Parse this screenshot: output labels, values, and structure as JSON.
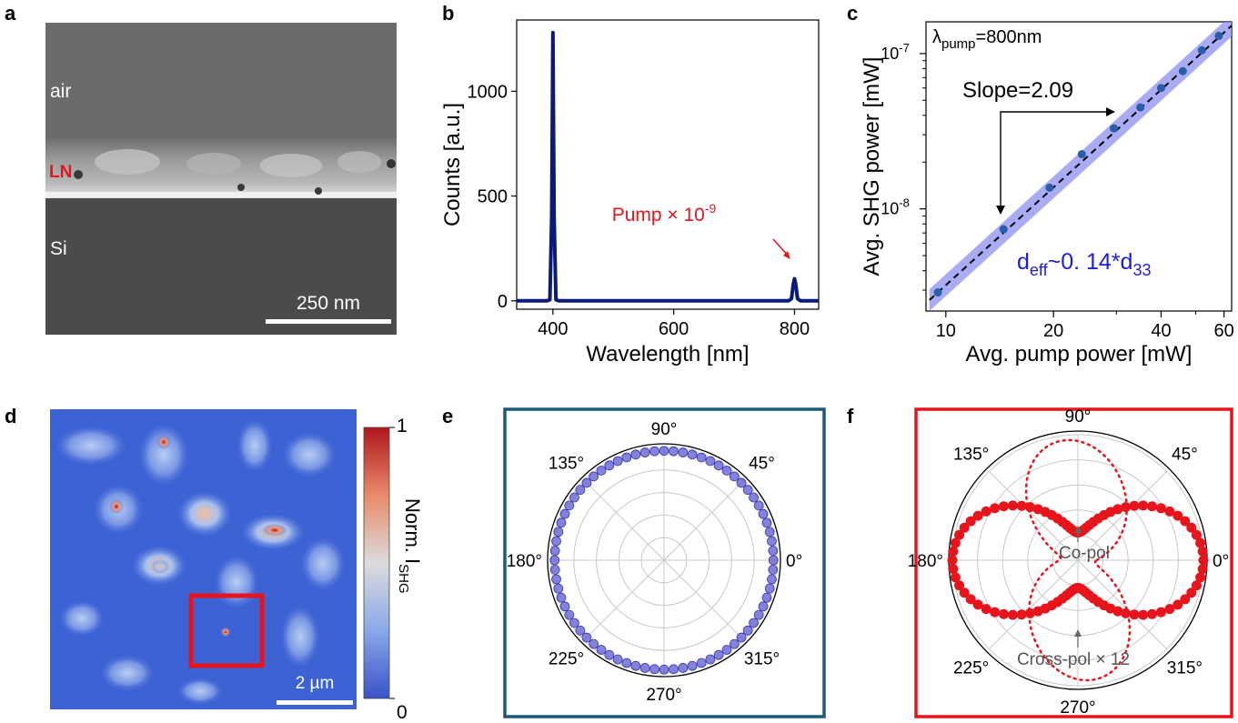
{
  "panels": {
    "a": {
      "letter": "a",
      "labels": {
        "air": "air",
        "ln": "LN",
        "si": "Si"
      },
      "scalebar": "250 nm",
      "colors": {
        "ln_label": "#e8141c"
      }
    },
    "b": {
      "letter": "b",
      "annotation_pre": "Pump × 10",
      "annotation_exp": "-9",
      "colors": {
        "trace": "#0a1a7a",
        "annotation": "#e8141c"
      }
    },
    "c": {
      "letter": "c",
      "lambda_sym": "λ",
      "lambda_sub": "pump",
      "lambda_rest": "=800nm",
      "slope": "Slope=2.09",
      "deff_pre": "d",
      "deff_sub": "eff",
      "deff_mid": "~0. 14*d",
      "deff_sub2": "33",
      "colors": {
        "points": "#2a5ea8",
        "band": "#8c8ff2",
        "fit": "#000000",
        "deff": "#1c1ce0"
      }
    },
    "d": {
      "letter": "d",
      "scalebar": "2 µm",
      "colorbar_label": "Norm. I",
      "colorbar_label_sub": "SHG",
      "colorbar_ticks": [
        "1",
        "0"
      ],
      "colors": {
        "box": "#e8141c",
        "map_low": "#3a60d0",
        "map_high": "#b0161e"
      }
    },
    "e": {
      "letter": "e",
      "angles": [
        "90°",
        "45°",
        "0°",
        "315°",
        "270°",
        "225°",
        "180°",
        "135°"
      ],
      "colors": {
        "frame": "#1e5a78",
        "points": "#5a5ad2"
      }
    },
    "f": {
      "letter": "f",
      "angles": [
        "90°",
        "45°",
        "0°",
        "315°",
        "270°",
        "225°",
        "180°",
        "135°"
      ],
      "copol": "Co-pol",
      "crosspol": "Cross-pol × 12",
      "colors": {
        "frame": "#e8141c",
        "curve": "#e8141c"
      }
    }
  },
  "chart_data": [
    {
      "panel": "b",
      "type": "line",
      "xlabel": "Wavelength [nm]",
      "ylabel": "Counts [a.u.]",
      "xlim": [
        340,
        840
      ],
      "ylim": [
        -40,
        1340
      ],
      "xticks": [
        400,
        600,
        800
      ],
      "yticks": [
        0,
        500,
        1000
      ],
      "series": [
        {
          "x": [
            340,
            390,
            395,
            398,
            400,
            402,
            405,
            410,
            450,
            500,
            550,
            600,
            650,
            700,
            750,
            790,
            795,
            798,
            800,
            802,
            805,
            810,
            840
          ],
          "y": [
            0,
            0,
            5,
            400,
            1280,
            400,
            5,
            0,
            0,
            0,
            0,
            0,
            0,
            0,
            0,
            0,
            10,
            80,
            105,
            80,
            10,
            0,
            0
          ]
        }
      ]
    },
    {
      "panel": "c",
      "type": "scatter",
      "xlabel": "Avg. pump power [mW]",
      "ylabel": "Avg. SHG power [mW]",
      "xscale": "log",
      "yscale": "log",
      "xlim": [
        8.8,
        63
      ],
      "ylim": [
        2.2e-09,
        1.6e-07
      ],
      "xticks": [
        10,
        20,
        40,
        60
      ],
      "yticks": [
        1e-08,
        1e-07
      ],
      "ytick_labels": [
        [
          "10",
          "-8"
        ],
        [
          "10",
          "-7"
        ]
      ],
      "x": [
        9.5,
        14.5,
        19.5,
        24,
        29.5,
        35,
        40,
        46,
        52,
        58
      ],
      "y": [
        2.9e-09,
        7.4e-09,
        1.37e-08,
        2.25e-08,
        3.3e-08,
        4.5e-08,
        6e-08,
        7.7e-08,
        1.05e-07,
        1.3e-07
      ]
    },
    {
      "panel": "e",
      "type": "scatter",
      "coordinate": "polar",
      "rlim": [
        0,
        1
      ],
      "angle_step_deg": 5,
      "r": "≈0.97 at every angle"
    },
    {
      "panel": "f",
      "type": "line",
      "coordinate": "polar",
      "rlim": [
        0,
        1
      ],
      "series": [
        {
          "name": "Co-pol",
          "model": "cos²θ",
          "max": 1.0,
          "style": "markers"
        },
        {
          "name": "Cross-pol × 12",
          "model": "sin²θ",
          "max": 0.95,
          "style": "dotted"
        }
      ]
    }
  ]
}
